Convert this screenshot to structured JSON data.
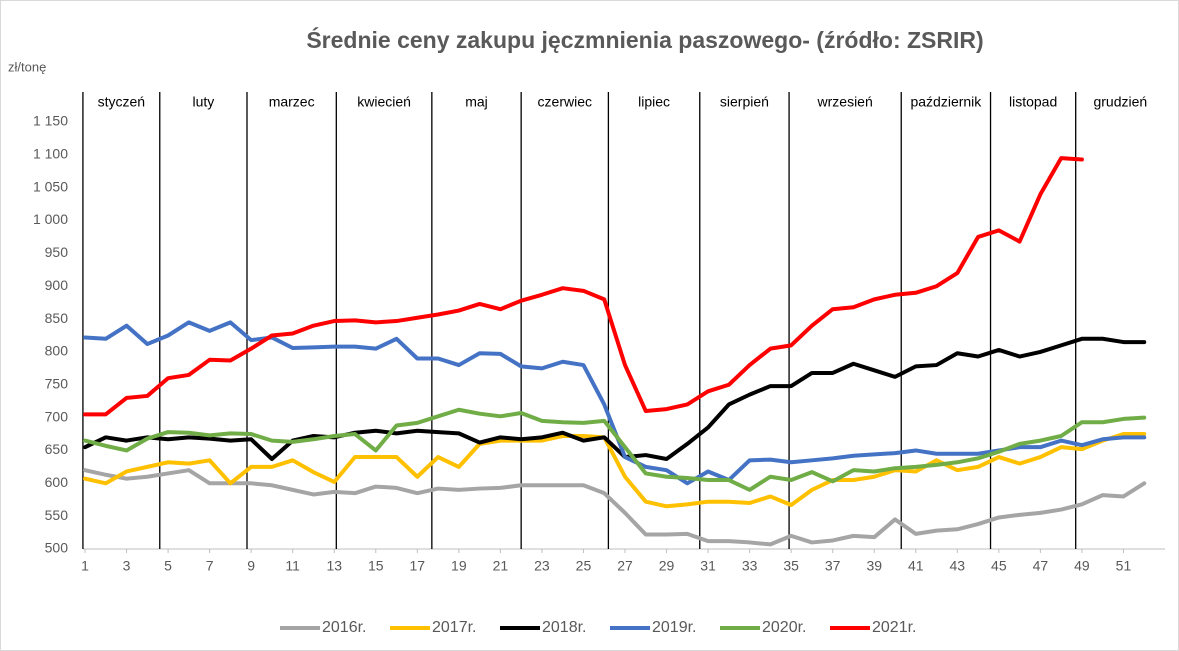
{
  "chart_data": {
    "type": "line",
    "title": "Średnie ceny zakupu jęczmnienia paszowego- (źródło: ZSRIR)",
    "y_label": "zł/tonę",
    "x": [
      1,
      2,
      3,
      4,
      5,
      6,
      7,
      8,
      9,
      10,
      11,
      12,
      13,
      14,
      15,
      16,
      17,
      18,
      19,
      20,
      21,
      22,
      23,
      24,
      25,
      26,
      27,
      28,
      29,
      30,
      31,
      32,
      33,
      34,
      35,
      36,
      37,
      38,
      39,
      40,
      41,
      42,
      43,
      44,
      45,
      46,
      47,
      48,
      49,
      50,
      51,
      52
    ],
    "xlim": [
      1,
      53
    ],
    "xticks": [
      1,
      3,
      5,
      7,
      9,
      11,
      13,
      15,
      17,
      19,
      21,
      23,
      25,
      27,
      29,
      31,
      33,
      35,
      37,
      39,
      41,
      43,
      45,
      47,
      49,
      51
    ],
    "ylim": [
      500,
      1150
    ],
    "yticks": [
      500,
      550,
      600,
      650,
      700,
      750,
      800,
      850,
      900,
      950,
      {
        "value": 1000,
        "label": "1 000"
      },
      {
        "value": 1050,
        "label": "1 050"
      },
      {
        "value": 1100,
        "label": "1 100"
      },
      {
        "value": 1150,
        "label": "1 150"
      }
    ],
    "months": [
      "styczeń",
      "luty",
      "marzec",
      "kwiecień",
      "maj",
      "czerwiec",
      "lipiec",
      "sierpień",
      "wrzesień",
      "październik",
      "listopad",
      "grudzień"
    ],
    "month_dividers": [
      0.9,
      4.6,
      8.8,
      13.1,
      17.7,
      22.0,
      26.2,
      30.6,
      34.9,
      40.3,
      44.6,
      48.7
    ],
    "series": [
      {
        "name": "2016r.",
        "color": "#a5a5a5",
        "values": [
          620,
          613,
          607,
          610,
          615,
          620,
          600,
          600,
          600,
          597,
          590,
          583,
          587,
          585,
          595,
          593,
          585,
          592,
          590,
          592,
          593,
          597,
          597,
          597,
          597,
          585,
          555,
          522,
          522,
          523,
          512,
          512,
          510,
          507,
          520,
          510,
          513,
          520,
          518,
          545,
          523,
          528,
          530,
          538,
          548,
          552,
          555,
          560,
          568,
          582,
          580,
          600
        ]
      },
      {
        "name": "2017r.",
        "color": "#ffc000",
        "values": [
          607,
          600,
          618,
          625,
          632,
          630,
          635,
          600,
          625,
          625,
          635,
          617,
          602,
          640,
          640,
          640,
          610,
          640,
          625,
          660,
          665,
          665,
          665,
          672,
          672,
          670,
          610,
          572,
          565,
          568,
          572,
          572,
          570,
          580,
          567,
          590,
          605,
          605,
          610,
          620,
          618,
          635,
          620,
          625,
          640,
          630,
          640,
          655,
          652,
          665,
          675,
          675
        ]
      },
      {
        "name": "2018r.",
        "color": "#000000",
        "values": [
          655,
          670,
          665,
          670,
          667,
          670,
          668,
          665,
          667,
          637,
          665,
          672,
          670,
          677,
          680,
          676,
          680,
          678,
          676,
          662,
          670,
          667,
          670,
          677,
          665,
          670,
          640,
          643,
          637,
          660,
          685,
          720,
          735,
          748,
          748,
          768,
          768,
          782,
          772,
          762,
          778,
          780,
          798,
          793,
          803,
          793,
          800,
          810,
          820,
          820,
          815,
          815
        ]
      },
      {
        "name": "2019r.",
        "color": "#4472c4",
        "values": [
          822,
          820,
          840,
          812,
          825,
          845,
          832,
          845,
          818,
          822,
          806,
          807,
          808,
          808,
          805,
          820,
          790,
          790,
          780,
          798,
          797,
          778,
          775,
          785,
          780,
          720,
          640,
          625,
          620,
          600,
          618,
          605,
          635,
          636,
          632,
          635,
          638,
          642,
          644,
          646,
          650,
          645,
          645,
          645,
          650,
          655,
          655,
          665,
          658,
          667,
          670,
          670
        ]
      },
      {
        "name": "2020r.",
        "color": "#70ad47",
        "values": [
          665,
          657,
          650,
          668,
          678,
          677,
          673,
          676,
          675,
          665,
          663,
          667,
          672,
          675,
          650,
          688,
          692,
          702,
          712,
          706,
          702,
          707,
          695,
          693,
          692,
          695,
          655,
          615,
          610,
          608,
          605,
          605,
          590,
          610,
          605,
          617,
          603,
          620,
          618,
          623,
          625,
          628,
          632,
          638,
          648,
          660,
          665,
          672,
          693,
          693,
          698,
          700
        ]
      },
      {
        "name": "2021r.",
        "color": "#ff0000",
        "values": [
          705,
          705,
          730,
          733,
          760,
          765,
          788,
          787,
          805,
          825,
          828,
          840,
          847,
          848,
          845,
          847,
          852,
          857,
          863,
          873,
          865,
          878,
          887,
          897,
          893,
          880,
          780,
          710,
          713,
          720,
          740,
          750,
          780,
          805,
          810,
          840,
          865,
          868,
          880,
          887,
          890,
          900,
          920,
          975,
          985,
          968,
          1040,
          1095,
          1093,
          null,
          null,
          null
        ]
      }
    ]
  }
}
